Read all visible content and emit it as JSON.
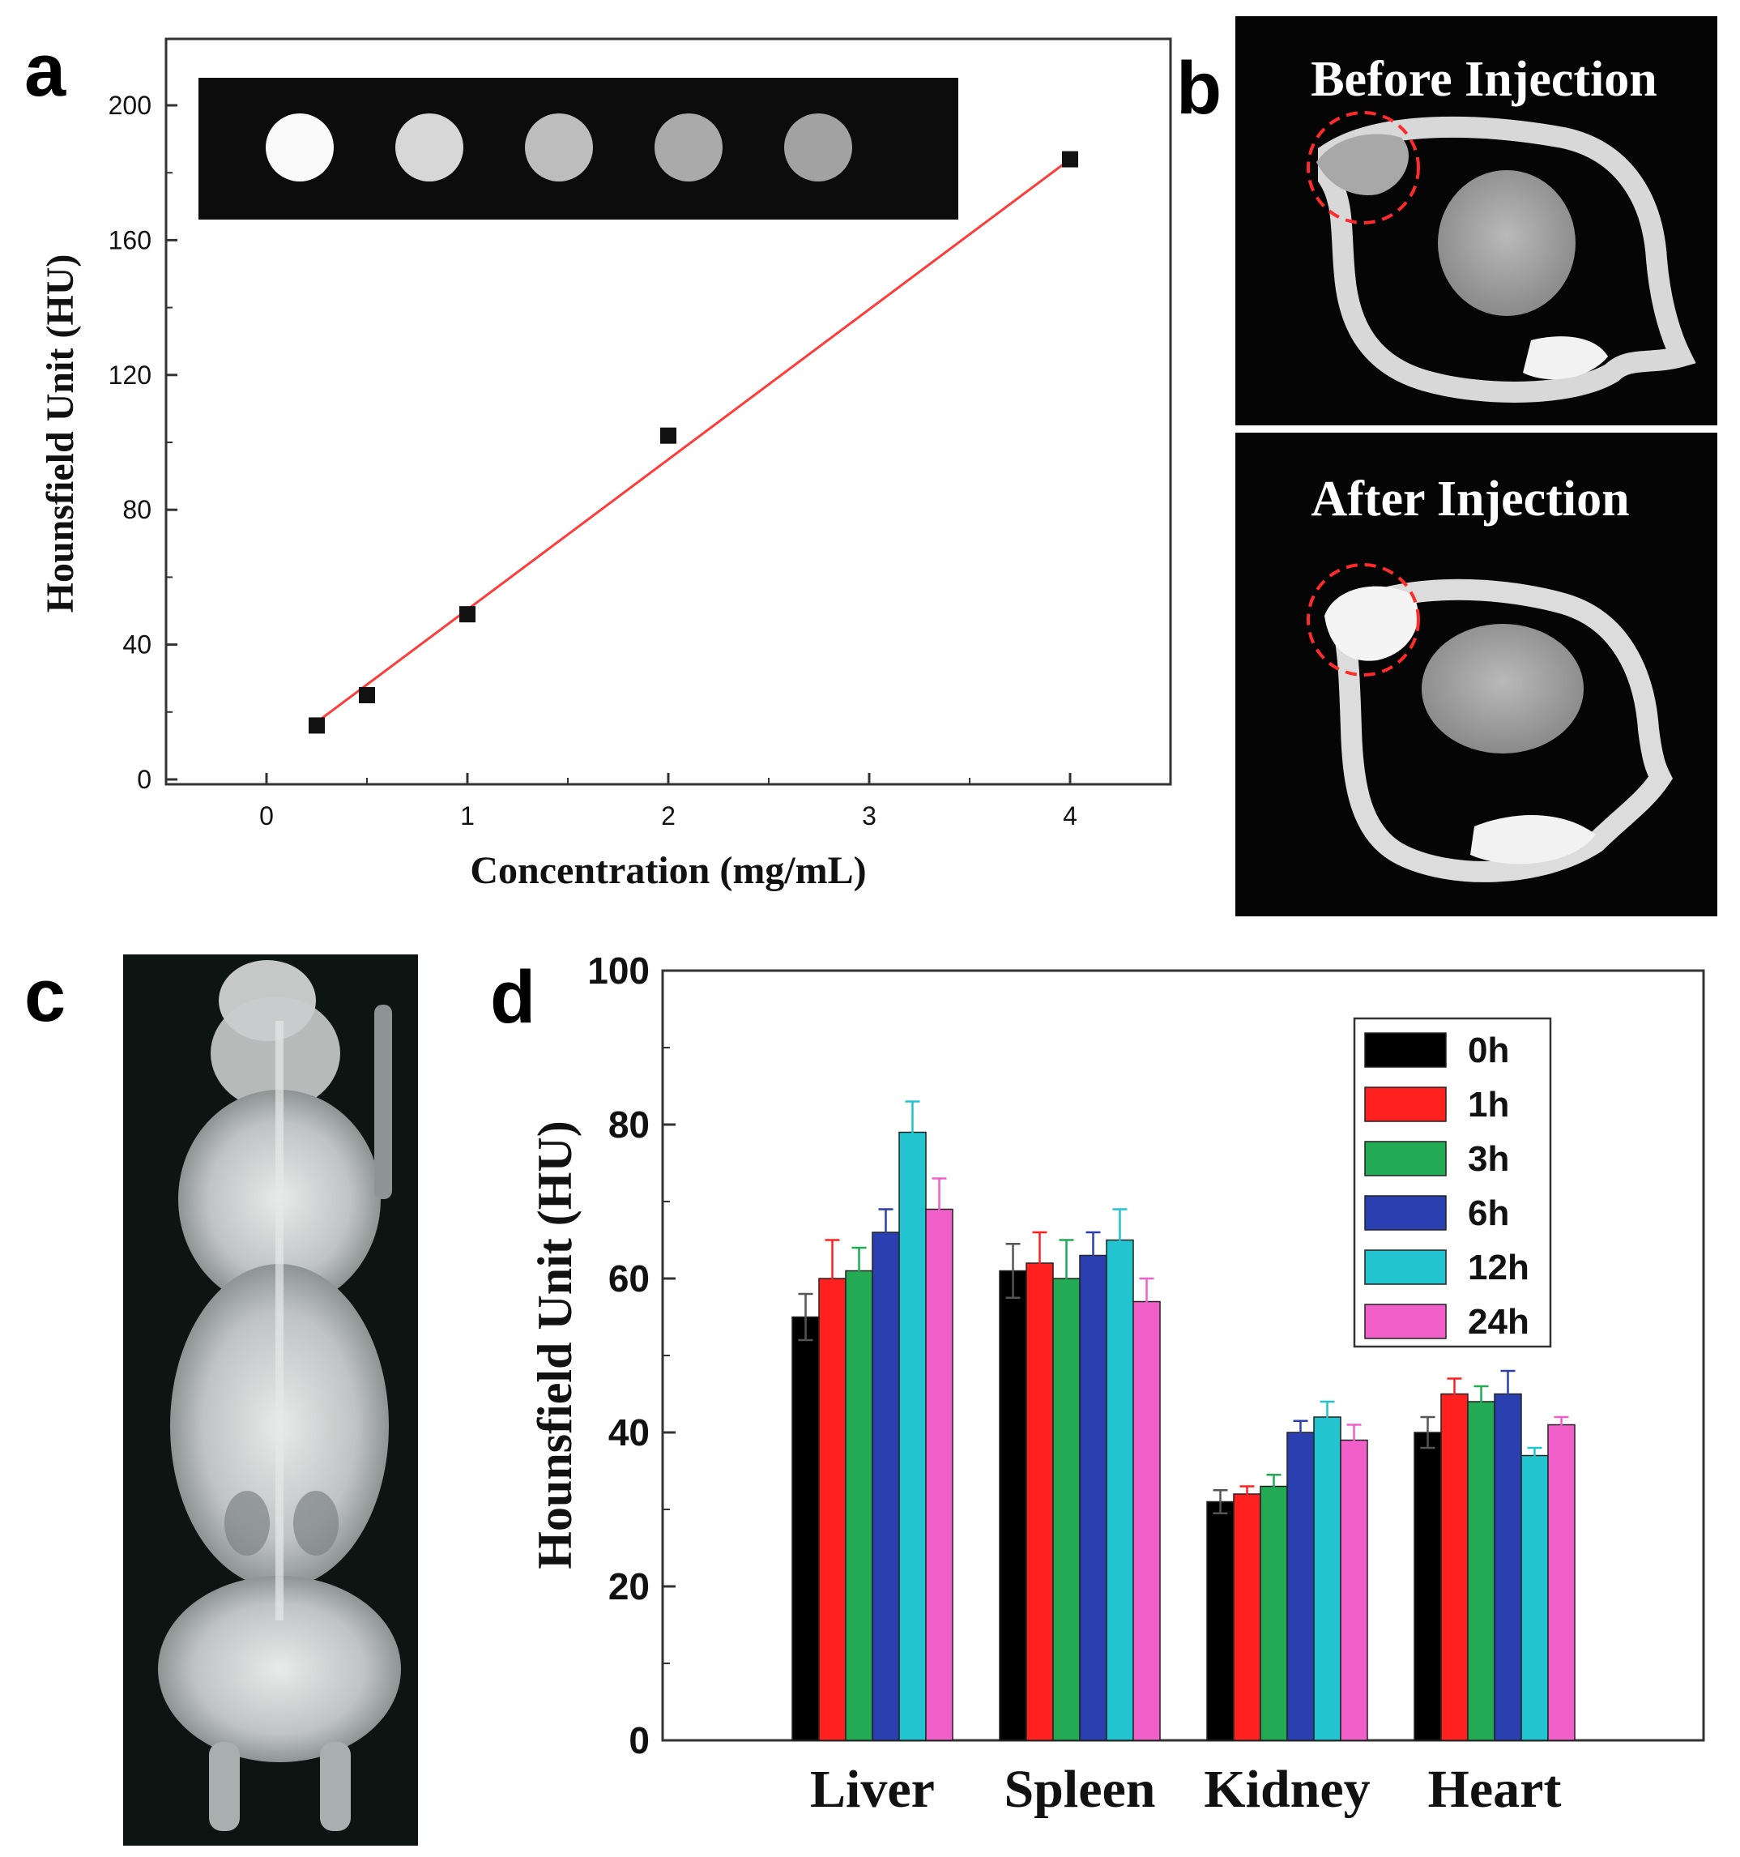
{
  "panels": {
    "a": {
      "letter": "a",
      "inset_note": ""
    },
    "b": {
      "letter": "b",
      "before_label": "Before Injection",
      "after_label": "After Injection"
    },
    "c": {
      "letter": "c"
    },
    "d": {
      "letter": "d"
    }
  },
  "colors": {
    "fit_line": "#ff3b3b",
    "series": [
      "#000000",
      "#ff2020",
      "#22aa55",
      "#2a3fb0",
      "#22c4cf",
      "#f060c8"
    ]
  },
  "chart_data": [
    {
      "id": "a",
      "type": "scatter",
      "title": "",
      "xlabel": "Concentration (mg/mL)",
      "ylabel": "Hounsfield Unit (HU)",
      "xlim": [
        -0.5,
        4.5
      ],
      "ylim": [
        0,
        200
      ],
      "xticks": [
        "0",
        "1",
        "2",
        "3",
        "4"
      ],
      "yticks": [
        "0",
        "40",
        "80",
        "120",
        "160",
        "200"
      ],
      "grid": false,
      "points": [
        {
          "x": 0.25,
          "y": 16
        },
        {
          "x": 0.5,
          "y": 25
        },
        {
          "x": 1,
          "y": 49
        },
        {
          "x": 2,
          "y": 102
        },
        {
          "x": 4,
          "y": 184
        }
      ],
      "fit_line": {
        "x": [
          0.25,
          4.0
        ],
        "y": [
          17,
          184
        ]
      },
      "inset_spots": [
        1.0,
        0.78,
        0.62,
        0.5,
        0.45
      ]
    },
    {
      "id": "d",
      "type": "bar",
      "title": "",
      "xlabel": "",
      "ylabel": "Hounsfield Unit (HU)",
      "ylim": [
        0,
        100
      ],
      "yticks": [
        "0",
        "20",
        "40",
        "60",
        "80",
        "100"
      ],
      "categories": [
        "Liver",
        "Spleen",
        "Kidney",
        "Heart"
      ],
      "legend_position": "top-right",
      "series": [
        {
          "name": "0h",
          "values": [
            55,
            61,
            31,
            40
          ],
          "errors": [
            3,
            3.5,
            1.5,
            2
          ]
        },
        {
          "name": "1h",
          "values": [
            60,
            62,
            32,
            45
          ],
          "errors": [
            5,
            4,
            1,
            2
          ]
        },
        {
          "name": "3h",
          "values": [
            61,
            60,
            33,
            44
          ],
          "errors": [
            3,
            5,
            1.5,
            2
          ]
        },
        {
          "name": "6h",
          "values": [
            66,
            63,
            40,
            45
          ],
          "errors": [
            3,
            3,
            1.5,
            3
          ]
        },
        {
          "name": "12h",
          "values": [
            79,
            65,
            42,
            37
          ],
          "errors": [
            4,
            4,
            2,
            1
          ]
        },
        {
          "name": "24h",
          "values": [
            69,
            57,
            39,
            41
          ],
          "errors": [
            4,
            3,
            2,
            1
          ]
        }
      ]
    }
  ]
}
